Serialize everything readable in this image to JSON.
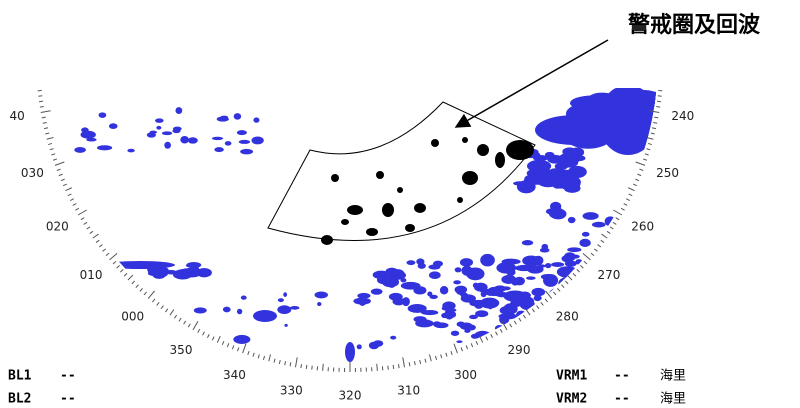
{
  "annotation": "警戒圈及回波",
  "bearing_labels": [
    "40",
    "030",
    "020",
    "010",
    "000",
    "350",
    "340",
    "330",
    "320",
    "310",
    "300",
    "290",
    "280",
    "270",
    "260",
    "250",
    "240"
  ],
  "status_left": [
    {
      "label": "BL1",
      "value": "--"
    },
    {
      "label": "BL2",
      "value": "--"
    }
  ],
  "status_right": [
    {
      "label": "VRM1",
      "value": "--",
      "unit": "海里"
    },
    {
      "label": "VRM2",
      "value": "--",
      "unit": "海里"
    }
  ]
}
